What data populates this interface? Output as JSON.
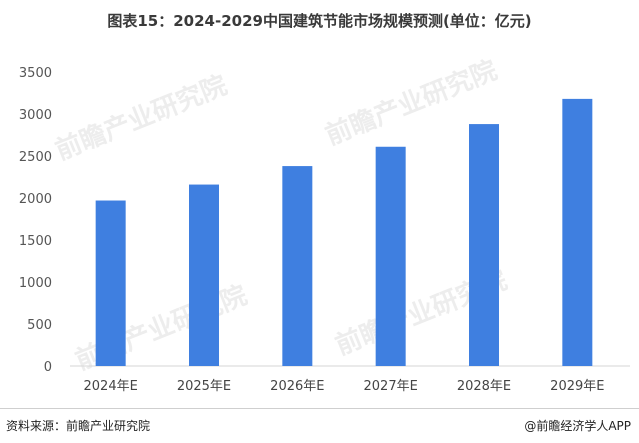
{
  "page": {
    "title": "图表15：2024-2029中国建筑节能市场规模预测(单位：亿元)",
    "source": "资料来源：前瞻产业研究院",
    "credit": "@前瞻经济学人APP",
    "watermark": "前瞻产业研究院"
  },
  "chart_data": {
    "type": "bar",
    "title": "图表15：2024-2029中国建筑节能市场规模预测(单位：亿元)",
    "categories": [
      "2024年E",
      "2025年E",
      "2026年E",
      "2027年E",
      "2028年E",
      "2029年E"
    ],
    "values": [
      1970,
      2160,
      2380,
      2610,
      2880,
      3180
    ],
    "ylim": [
      0,
      3500
    ],
    "yticks": [
      0,
      500,
      1000,
      1500,
      2000,
      2500,
      3000,
      3500
    ],
    "grid": false,
    "bar_color": "#3f7fe0",
    "xlabel": "",
    "ylabel": ""
  }
}
